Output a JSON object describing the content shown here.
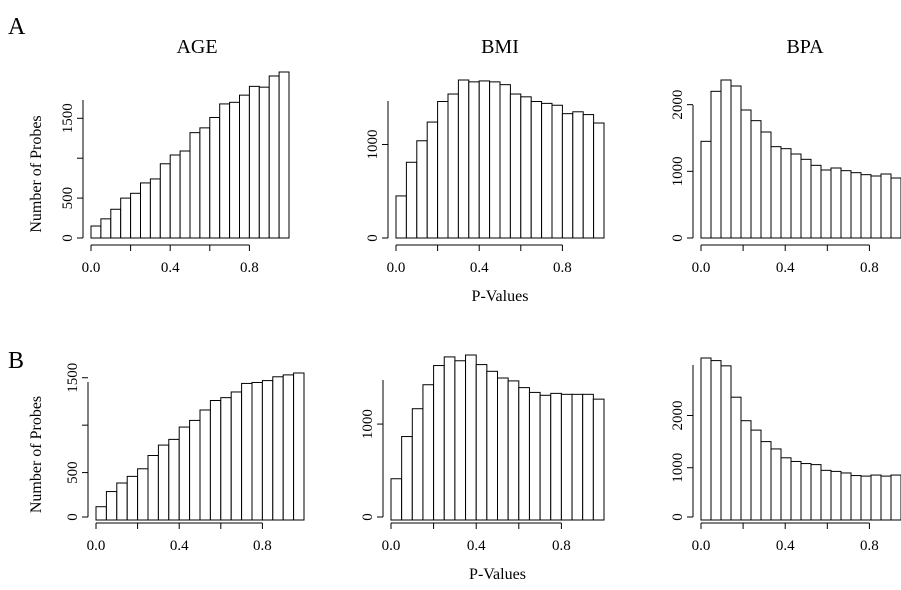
{
  "figure": {
    "panel_labels": [
      "A",
      "B"
    ],
    "column_titles": [
      "AGE",
      "BMI",
      "BPA"
    ],
    "ylabel": "Number of Probes",
    "xlabel": "P-Values"
  },
  "chart_data": [
    {
      "type": "bar",
      "panel": "A",
      "title": "AGE",
      "xlabel": "",
      "ylabel": "Number of Probes",
      "bin_width": 0.05,
      "xlim": [
        0,
        1
      ],
      "ylim": [
        0,
        1800
      ],
      "xticks": [
        "0.0",
        "0.4",
        "0.8"
      ],
      "yticks": [
        "0",
        "500",
        "1500"
      ],
      "values": [
        150,
        240,
        360,
        500,
        560,
        690,
        740,
        930,
        1040,
        1090,
        1320,
        1380,
        1510,
        1680,
        1700,
        1790,
        1900,
        1890,
        2030,
        2080
      ]
    },
    {
      "type": "bar",
      "panel": "A",
      "title": "BMI",
      "xlabel": "P-Values",
      "ylabel": "",
      "bin_width": 0.05,
      "xlim": [
        0,
        1
      ],
      "ylim": [
        0,
        1500
      ],
      "xticks": [
        "0.0",
        "0.4",
        "0.8"
      ],
      "yticks": [
        "0",
        "1000"
      ],
      "values": [
        450,
        810,
        1040,
        1240,
        1460,
        1540,
        1690,
        1670,
        1680,
        1670,
        1640,
        1540,
        1510,
        1460,
        1440,
        1420,
        1330,
        1350,
        1320,
        1230
      ]
    },
    {
      "type": "bar",
      "panel": "A",
      "title": "BPA",
      "xlabel": "",
      "ylabel": "",
      "bin_width": 0.05,
      "xlim": [
        0,
        0.95
      ],
      "ylim": [
        0,
        2000
      ],
      "xticks": [
        "0.0",
        "0.4",
        "0.8"
      ],
      "yticks": [
        "0",
        "1000",
        "2000"
      ],
      "values": [
        1450,
        2200,
        2370,
        2280,
        1920,
        1760,
        1590,
        1370,
        1340,
        1260,
        1180,
        1090,
        1020,
        1050,
        1010,
        980,
        950,
        930,
        960,
        900
      ]
    },
    {
      "type": "bar",
      "panel": "B",
      "title": "",
      "xlabel": "",
      "ylabel": "Number of Probes",
      "bin_width": 0.05,
      "xlim": [
        0,
        1
      ],
      "ylim": [
        0,
        1500
      ],
      "xticks": [
        "0.0",
        "0.4",
        "0.8"
      ],
      "yticks": [
        "0",
        "500",
        "1500"
      ],
      "values": [
        140,
        300,
        390,
        460,
        540,
        680,
        790,
        850,
        980,
        1050,
        1160,
        1260,
        1290,
        1350,
        1440,
        1450,
        1470,
        1510,
        1530,
        1550
      ]
    },
    {
      "type": "bar",
      "panel": "B",
      "title": "",
      "xlabel": "P-Values",
      "ylabel": "",
      "bin_width": 0.05,
      "xlim": [
        0,
        1
      ],
      "ylim": [
        0,
        1500
      ],
      "xticks": [
        "0.0",
        "0.4",
        "0.8"
      ],
      "yticks": [
        "0",
        "1000"
      ],
      "values": [
        430,
        870,
        1160,
        1410,
        1610,
        1700,
        1660,
        1720,
        1620,
        1550,
        1480,
        1450,
        1380,
        1330,
        1300,
        1320,
        1310,
        1310,
        1310,
        1260
      ]
    },
    {
      "type": "bar",
      "panel": "B",
      "title": "",
      "xlabel": "",
      "ylabel": "",
      "bin_width": 0.05,
      "xlim": [
        0,
        0.95
      ],
      "ylim": [
        0,
        3000
      ],
      "xticks": [
        "0.0",
        "0.4",
        "0.8"
      ],
      "yticks": [
        "0",
        "1000",
        "2000"
      ],
      "values": [
        3100,
        3050,
        2950,
        2350,
        1900,
        1720,
        1500,
        1360,
        1190,
        1120,
        1080,
        1060,
        950,
        930,
        900,
        850,
        840,
        860,
        840,
        860
      ]
    }
  ]
}
